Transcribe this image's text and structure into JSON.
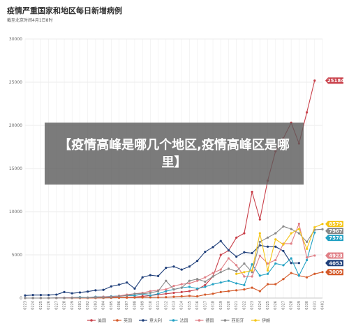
{
  "header": {
    "title": "疫情严重国家和地区每日新增病例",
    "subtitle": "截至北京时间4月1日8时"
  },
  "overlay": {
    "text": "【疫情高峰是哪几个地区,疫情高峰区是哪里】"
  },
  "chart_data": {
    "type": "line",
    "ylim": [
      0,
      30000
    ],
    "yticks": [
      0,
      5000,
      10000,
      15000,
      20000,
      25000,
      30000
    ],
    "grid": true,
    "legend_position": "bottom",
    "x": [
      "0223",
      "0224",
      "0225",
      "0226",
      "0227",
      "0228",
      "0229",
      "0301",
      "0302",
      "0303",
      "0304",
      "0305",
      "0306",
      "0307",
      "0308",
      "0309",
      "0310",
      "0311",
      "0312",
      "0313",
      "0314",
      "0315",
      "0316",
      "0317",
      "0318",
      "0319",
      "0320",
      "0321",
      "0322",
      "0323",
      "0324",
      "0325",
      "0326",
      "0327",
      "0328",
      "0329",
      "0330",
      "0331",
      "0401"
    ],
    "series": [
      {
        "name": "美国",
        "color": "#c9404a",
        "end_label": "25184",
        "values": [
          0,
          0,
          0,
          0,
          1,
          1,
          5,
          5,
          20,
          25,
          30,
          40,
          70,
          90,
          120,
          200,
          300,
          400,
          500,
          600,
          700,
          800,
          1000,
          1500,
          2500,
          5000,
          5500,
          7000,
          7500,
          12300,
          9100,
          13600,
          17000,
          18500,
          20300,
          17900,
          21500,
          25184,
          null
        ]
      },
      {
        "name": "英国",
        "color": "#d45a2a",
        "end_label": "3009",
        "values": [
          0,
          0,
          0,
          0,
          0,
          2,
          2,
          3,
          4,
          10,
          20,
          30,
          40,
          50,
          60,
          70,
          80,
          80,
          100,
          150,
          200,
          250,
          200,
          400,
          500,
          700,
          800,
          900,
          1000,
          1200,
          800,
          1600,
          1600,
          2200,
          2900,
          2600,
          2400,
          2800,
          3009
        ]
      },
      {
        "name": "意大利",
        "color": "#1f3f7a",
        "end_label": "4053",
        "values": [
          300,
          350,
          350,
          350,
          400,
          700,
          550,
          650,
          750,
          900,
          950,
          1350,
          1550,
          1800,
          1100,
          2400,
          2650,
          2550,
          3500,
          3650,
          3300,
          3650,
          4300,
          5350,
          5900,
          6600,
          5550,
          4800,
          5300,
          5200,
          6100,
          5950,
          5950,
          5450,
          4050,
          4050,
          null,
          null,
          null
        ]
      },
      {
        "name": "法国",
        "color": "#24a2c4",
        "end_label": "7578",
        "values": [
          0,
          0,
          0,
          0,
          20,
          20,
          50,
          100,
          50,
          150,
          150,
          200,
          250,
          300,
          300,
          450,
          300,
          500,
          800,
          1000,
          1200,
          1300,
          1100,
          1300,
          1600,
          1800,
          2000,
          1700,
          1500,
          3900,
          2600,
          2800,
          4000,
          3800,
          4600,
          2600,
          4400,
          7578,
          null
        ]
      },
      {
        "name": "德国",
        "color": "#e07f86",
        "end_label": "4923",
        "values": [
          0,
          0,
          0,
          0,
          20,
          30,
          50,
          50,
          50,
          100,
          150,
          150,
          250,
          400,
          500,
          600,
          800,
          900,
          1000,
          1400,
          1600,
          1700,
          2000,
          2400,
          2900,
          3300,
          4600,
          3800,
          2500,
          2500,
          4900,
          4000,
          4400,
          6300,
          6300,
          8600,
          4700,
          4923,
          null
        ]
      },
      {
        "name": "西班牙",
        "color": "#8a8a8a",
        "end_label": "7967",
        "values": [
          0,
          0,
          0,
          0,
          10,
          10,
          20,
          30,
          40,
          60,
          80,
          100,
          200,
          300,
          500,
          500,
          600,
          800,
          2000,
          1000,
          1200,
          2000,
          2200,
          1900,
          2500,
          3000,
          3400,
          3100,
          4000,
          3000,
          6500,
          7000,
          7500,
          8300,
          8000,
          7500,
          6500,
          7900,
          7967
        ]
      },
      {
        "name": "伊朗",
        "color": "#f5c518",
        "end_label": "8579",
        "values": [
          null,
          null,
          null,
          null,
          null,
          null,
          null,
          null,
          null,
          null,
          null,
          null,
          null,
          null,
          null,
          null,
          null,
          null,
          null,
          null,
          null,
          null,
          null,
          null,
          null,
          null,
          null,
          2800,
          3000,
          3200,
          7500,
          3200,
          6800,
          6200,
          7500,
          8000,
          5700,
          8200,
          8579
        ]
      }
    ]
  }
}
